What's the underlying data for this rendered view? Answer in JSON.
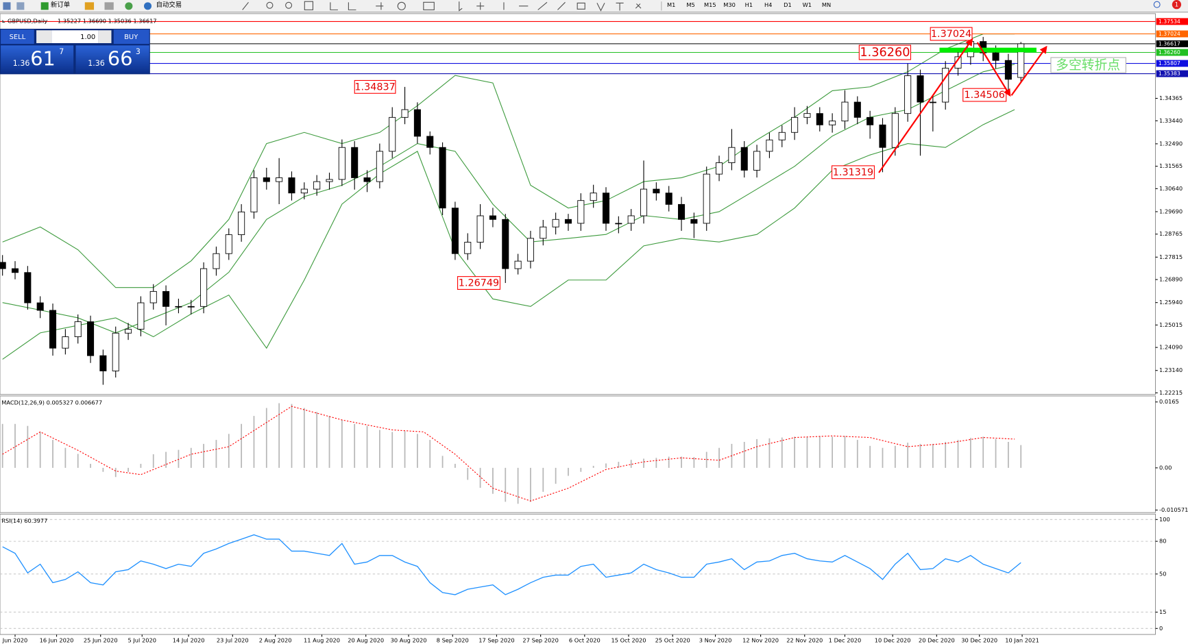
{
  "toolbar": {
    "new_order": "新订单",
    "auto_trading": "自动交易",
    "timeframes": [
      "M1",
      "M5",
      "M15",
      "M30",
      "H1",
      "H4",
      "D1",
      "W1",
      "MN"
    ],
    "badge": "1"
  },
  "trade_panel": {
    "sell": "SELL",
    "buy": "BUY",
    "lots": "1.00",
    "sell_big": "1.36",
    "sell_pips": "61",
    "sell_frac": "7",
    "buy_big": "1.36",
    "buy_pips": "66",
    "buy_frac": "3"
  },
  "chart_data": [
    {
      "type": "candlestick",
      "title": "GBPUSD,Daily",
      "subtitle": "1.35227 1.36690 1.35036 1.36617",
      "xlim": [
        -0.2,
        91.7
      ],
      "xticks": [
        {
          "value": 1.0,
          "label": "Jun 2020"
        },
        {
          "value": 4.3,
          "label": "16 Jun 2020"
        },
        {
          "value": 7.8,
          "label": "25 Jun 2020"
        },
        {
          "value": 11.1,
          "label": "5 Jul 2020"
        },
        {
          "value": 14.8,
          "label": "14 Jul 2020"
        },
        {
          "value": 18.3,
          "label": "23 Jul 2020"
        },
        {
          "value": 21.7,
          "label": "2 Aug 2020"
        },
        {
          "value": 25.4,
          "label": "11 Aug 2020"
        },
        {
          "value": 28.9,
          "label": "20 Aug 2020"
        },
        {
          "value": 32.3,
          "label": "30 Aug 2020"
        },
        {
          "value": 35.8,
          "label": "8 Sep 2020"
        },
        {
          "value": 39.3,
          "label": "17 Sep 2020"
        },
        {
          "value": 42.8,
          "label": "27 Sep 2020"
        },
        {
          "value": 46.3,
          "label": "6 Oct 2020"
        },
        {
          "value": 49.8,
          "label": "15 Oct 2020"
        },
        {
          "value": 53.3,
          "label": "25 Oct 2020"
        },
        {
          "value": 56.7,
          "label": "3 Nov 2020"
        },
        {
          "value": 60.3,
          "label": "12 Nov 2020"
        },
        {
          "value": 63.8,
          "label": "22 Nov 2020"
        },
        {
          "value": 67.0,
          "label": "1 Dec 2020"
        },
        {
          "value": 70.8,
          "label": "10 Dec 2020"
        },
        {
          "value": 74.3,
          "label": "20 Dec 2020"
        },
        {
          "value": 77.7,
          "label": "30 Dec 2020"
        },
        {
          "value": 81.1,
          "label": "10 Jan 2021"
        }
      ],
      "ylim": [
        1.2215,
        1.3786
      ],
      "yticks": [
        1.34365,
        {
          "value": 1.3344,
          "label": "1.33440"
        },
        {
          "value": 1.3249,
          "label": "1.32490"
        },
        1.31565,
        {
          "value": 1.3064,
          "label": "1.30640"
        },
        {
          "value": 1.2969,
          "label": "1.29690"
        },
        1.28765,
        1.27815,
        {
          "value": 1.2689,
          "label": "1.26890"
        },
        {
          "value": 1.2594,
          "label": "1.25940"
        },
        1.25015,
        {
          "value": 1.2409,
          "label": "1.24090"
        },
        {
          "value": 1.2314,
          "label": "1.23140"
        },
        1.22215
      ],
      "open": [
        1.276,
        1.2734,
        1.2718,
        1.2593,
        1.2562,
        1.2406,
        1.2453,
        1.2515,
        1.2375,
        1.2312,
        1.2468,
        1.2484,
        1.2593,
        1.264,
        1.2578,
        1.2578,
        1.2578,
        1.2734,
        1.2796,
        1.2874,
        1.2968,
        1.3109,
        1.3093,
        1.3109,
        1.3046,
        1.3062,
        1.3093,
        1.3102,
        1.3234,
        1.3109,
        1.3093,
        1.3218,
        1.3358,
        1.339,
        1.328,
        1.3234,
        1.2984,
        1.2796,
        1.2843,
        1.2952,
        1.2937,
        1.2734,
        1.2765,
        1.2859,
        1.2906,
        1.2937,
        1.2921,
        1.3015,
        1.3046,
        1.2921,
        1.2921,
        1.2952,
        1.3062,
        1.3046,
        1.2999,
        1.2937,
        1.2921,
        1.3124,
        1.3171,
        1.3234,
        1.314,
        1.3218,
        1.3265,
        1.3296,
        1.3358,
        1.3374,
        1.3327,
        1.3343,
        1.3421,
        1.3358,
        1.3327,
        1.3234,
        1.3374,
        1.353,
        1.3421,
        1.3421,
        1.3561,
        1.3608,
        1.3671,
        1.3624,
        1.3593,
        1.35227
      ],
      "high": [
        1.279,
        1.2765,
        1.2745,
        1.262,
        1.259,
        1.2485,
        1.2545,
        1.254,
        1.24,
        1.2495,
        1.251,
        1.262,
        1.267,
        1.2665,
        1.261,
        1.2605,
        1.276,
        1.2825,
        1.29,
        1.3,
        1.314,
        1.315,
        1.319,
        1.3135,
        1.309,
        1.312,
        1.313,
        1.3267,
        1.326,
        1.314,
        1.325,
        1.34,
        1.34837,
        1.342,
        1.33,
        1.3255,
        1.301,
        1.288,
        1.3,
        1.2985,
        1.296,
        1.2795,
        1.289,
        1.2935,
        1.2965,
        1.296,
        1.3045,
        1.308,
        1.307,
        1.295,
        1.298,
        1.318,
        1.309,
        1.3075,
        1.303,
        1.2965,
        1.3155,
        1.32,
        1.331,
        1.326,
        1.3245,
        1.3295,
        1.3325,
        1.34,
        1.3405,
        1.34,
        1.3375,
        1.347,
        1.3445,
        1.3385,
        1.3355,
        1.34,
        1.358,
        1.3555,
        1.345,
        1.359,
        1.364,
        1.37024,
        1.369,
        1.3655,
        1.362,
        1.3669
      ],
      "low": [
        1.2705,
        1.269,
        1.2565,
        1.253,
        1.2375,
        1.238,
        1.2425,
        1.2345,
        1.2255,
        1.2285,
        1.244,
        1.2455,
        1.2565,
        1.25,
        1.255,
        1.2545,
        1.255,
        1.2705,
        1.277,
        1.2845,
        1.294,
        1.306,
        1.3,
        1.3015,
        1.302,
        1.3035,
        1.306,
        1.3075,
        1.306,
        1.305,
        1.3065,
        1.319,
        1.333,
        1.325,
        1.3205,
        1.2955,
        1.277,
        1.277,
        1.2815,
        1.2905,
        1.26749,
        1.271,
        1.2735,
        1.283,
        1.2875,
        1.289,
        1.289,
        1.2985,
        1.289,
        1.288,
        1.289,
        1.292,
        1.3015,
        1.297,
        1.289,
        1.286,
        1.289,
        1.3095,
        1.314,
        1.311,
        1.311,
        1.319,
        1.3235,
        1.3265,
        1.333,
        1.33,
        1.3295,
        1.331,
        1.333,
        1.327,
        1.31319,
        1.32,
        1.334,
        1.32,
        1.33,
        1.339,
        1.353,
        1.3575,
        1.359,
        1.356,
        1.34506,
        1.35036
      ],
      "close": [
        1.2734,
        1.2718,
        1.2593,
        1.2562,
        1.2406,
        1.2453,
        1.2515,
        1.2375,
        1.2312,
        1.2468,
        1.2484,
        1.2593,
        1.264,
        1.2578,
        1.2578,
        1.2578,
        1.2734,
        1.2796,
        1.2874,
        1.2968,
        1.3109,
        1.3093,
        1.3109,
        1.3046,
        1.3062,
        1.3093,
        1.3102,
        1.3234,
        1.3109,
        1.3093,
        1.3218,
        1.3358,
        1.339,
        1.328,
        1.3234,
        1.2984,
        1.2796,
        1.2843,
        1.2952,
        1.2937,
        1.2734,
        1.2765,
        1.2859,
        1.2906,
        1.2937,
        1.2921,
        1.3015,
        1.3046,
        1.2921,
        1.2921,
        1.2952,
        1.3062,
        1.3046,
        1.2999,
        1.2937,
        1.2921,
        1.3124,
        1.3171,
        1.3234,
        1.314,
        1.3218,
        1.3265,
        1.3296,
        1.3358,
        1.3374,
        1.3327,
        1.3343,
        1.3421,
        1.3358,
        1.3327,
        1.3234,
        1.3374,
        1.353,
        1.3421,
        1.3421,
        1.3561,
        1.3608,
        1.3671,
        1.3624,
        1.3593,
        1.3515,
        1.36617
      ],
      "up_color": "#ffffff",
      "down_color": "#000000",
      "band_x": [
        0,
        3,
        6,
        9,
        12,
        15,
        18,
        21,
        24,
        27,
        30,
        33,
        36,
        39,
        42,
        45,
        48,
        51,
        54,
        57,
        60,
        63,
        66,
        69,
        72,
        75,
        78,
        80.5
      ],
      "bands": [
        {
          "color": "#3c9a3c",
          "values": [
            1.2844,
            1.2906,
            1.2812,
            1.2656,
            1.2656,
            1.2766,
            1.2937,
            1.325,
            1.3296,
            1.325,
            1.3296,
            1.3406,
            1.3531,
            1.35,
            1.3078,
            1.2984,
            1.3015,
            1.3093,
            1.3109,
            1.3156,
            1.3265,
            1.3359,
            1.3468,
            1.3484,
            1.3546,
            1.364,
            1.3702,
            1.3702
          ]
        },
        {
          "color": "#3c9a3c",
          "values": [
            1.2594,
            1.2563,
            1.2531,
            1.2469,
            1.2531,
            1.2594,
            1.2719,
            1.2937,
            1.3031,
            1.3078,
            1.3156,
            1.325,
            1.3218,
            1.3,
            1.2844,
            1.2859,
            1.2875,
            1.2953,
            1.2937,
            1.2969,
            1.3062,
            1.3156,
            1.3281,
            1.3359,
            1.339,
            1.3468,
            1.3546,
            1.3577
          ]
        },
        {
          "color": "#3c9a3c",
          "values": [
            1.236,
            1.2469,
            1.25,
            1.2531,
            1.2453,
            1.2547,
            1.2625,
            1.2406,
            1.2687,
            1.3,
            1.3125,
            1.3218,
            1.2812,
            1.2609,
            1.2578,
            1.2687,
            1.2687,
            1.2828,
            1.2859,
            1.2844,
            1.2875,
            1.2984,
            1.314,
            1.3203,
            1.325,
            1.3234,
            1.3328,
            1.339
          ]
        }
      ],
      "levels": [
        {
          "value": 1.37534,
          "color": "#ff0000"
        },
        {
          "value": 1.37024,
          "color": "#ff6600"
        },
        {
          "value": 1.36617,
          "color": "#000000"
        },
        {
          "value": 1.3626,
          "label": "1.36260",
          "color": "#22c022"
        },
        {
          "value": 1.35807,
          "color": "#1010e0"
        },
        {
          "value": 1.35383,
          "color": "#1010b0"
        }
      ],
      "annotations": [
        {
          "value": 1.34837,
          "label": "1.34837"
        },
        {
          "value": 1.26749,
          "label": "1.26749"
        },
        {
          "value": 1.31319,
          "label": "1.31319"
        },
        {
          "value": 1.37024,
          "label": "1.37024"
        },
        {
          "value": 1.34506,
          "label": "1.34506"
        },
        {
          "value": 1.3626,
          "label": "1.36260"
        }
      ],
      "callout": "多空转折点"
    },
    {
      "type": "macd",
      "title": "MACD(12,26,9) 0.005327 0.006677",
      "ylim": [
        -0.0112,
        0.018
      ],
      "yticks": [
        0.0165,
        {
          "value": 0,
          "label": "0.00"
        },
        -0.010571
      ],
      "color": "#b8b8b8",
      "signal_color": "#ff0000",
      "values": [
        0.011,
        0.011,
        0.0105,
        0.009,
        0.007,
        0.005,
        0.0035,
        0.001,
        -0.001,
        -0.0023,
        -0.001,
        0.001,
        0.0034,
        0.004,
        0.0045,
        0.005,
        0.006,
        0.007,
        0.0085,
        0.011,
        0.013,
        0.015,
        0.0162,
        0.016,
        0.015,
        0.014,
        0.013,
        0.012,
        0.011,
        0.0105,
        0.0095,
        0.009,
        0.0092,
        0.0085,
        0.007,
        0.003,
        0.001,
        -0.003,
        -0.005,
        -0.0065,
        -0.0085,
        -0.009,
        -0.0085,
        -0.006,
        -0.004,
        -0.002,
        -0.001,
        0.0005,
        0.0011,
        0.0015,
        0.002,
        0.0023,
        0.0025,
        0.0028,
        0.0028,
        0.0027,
        0.004,
        0.005,
        0.006,
        0.0065,
        0.0072,
        0.0074,
        0.0076,
        0.0078,
        0.0078,
        0.008,
        0.0078,
        0.008,
        0.007,
        0.0055,
        0.005,
        0.0055,
        0.0063,
        0.006,
        0.006,
        0.0065,
        0.007,
        0.0075,
        0.0078,
        0.0072,
        0.0065,
        0.0057
      ],
      "signal_x": [
        0,
        3,
        6,
        9,
        11,
        15,
        18,
        23,
        27,
        31,
        33.5,
        36,
        39,
        42,
        45,
        48,
        51,
        54,
        57,
        60,
        63,
        66,
        69,
        72,
        75,
        78,
        80.5
      ],
      "signal": [
        0.0034,
        0.009,
        0.0044,
        -0.0008,
        -0.0017,
        0.0034,
        0.0053,
        0.0154,
        0.012,
        0.0095,
        0.009,
        0.0034,
        -0.0051,
        -0.0083,
        -0.0051,
        -0.0004,
        0.0015,
        0.0025,
        0.0019,
        0.0053,
        0.0076,
        0.008,
        0.0076,
        0.0053,
        0.0061,
        0.0076,
        0.0072
      ]
    },
    {
      "type": "line",
      "title": "RSI(14) 60.3977",
      "ylim": [
        -5.5,
        105
      ],
      "yticks": [
        100,
        80,
        50,
        15,
        0
      ],
      "grid": true,
      "color": "#1e90ff",
      "values": [
        75,
        69,
        51,
        59,
        42,
        45,
        52,
        42,
        40,
        52,
        54,
        62,
        59,
        55,
        59,
        57,
        69,
        73,
        78,
        82,
        86,
        82,
        82,
        71,
        71,
        69,
        67,
        78,
        59,
        61,
        67,
        67,
        61,
        57,
        42,
        33,
        31,
        36,
        38,
        40,
        31,
        36,
        42,
        47,
        49,
        49,
        57,
        59,
        47,
        49,
        51,
        59,
        54,
        51,
        47,
        47,
        59,
        61,
        64,
        54,
        61,
        62,
        67,
        69,
        64,
        62,
        61,
        67,
        61,
        55,
        45,
        59,
        69,
        54,
        55,
        64,
        61,
        67,
        59,
        55,
        51,
        60.3977
      ]
    }
  ]
}
